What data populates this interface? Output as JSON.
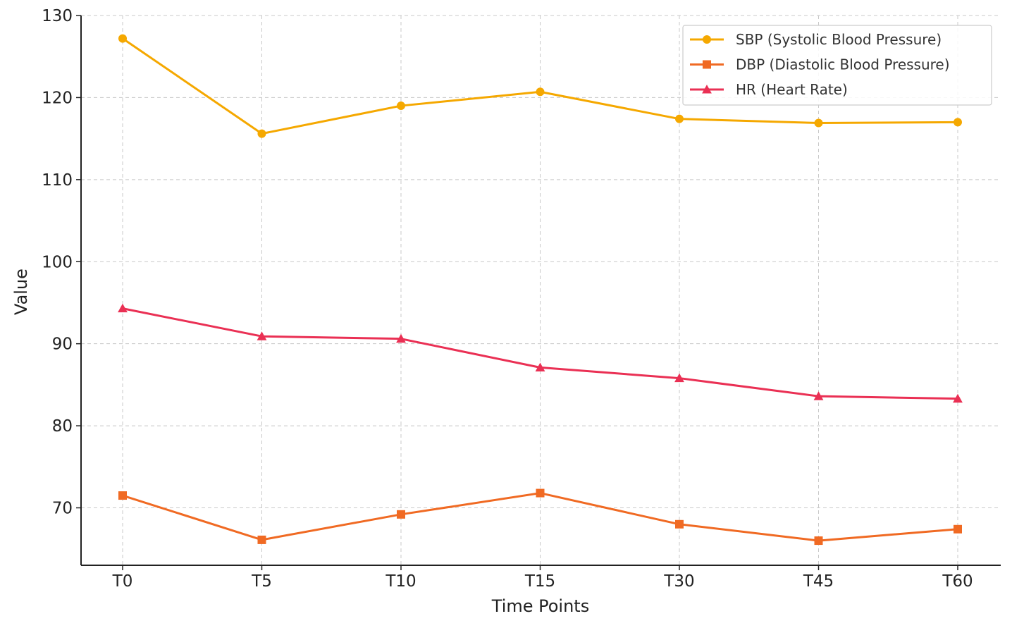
{
  "chart_data": {
    "type": "line",
    "title": "",
    "xlabel": "Time Points",
    "ylabel": "Value",
    "categories": [
      "T0",
      "T5",
      "T10",
      "T15",
      "T30",
      "T45",
      "T60"
    ],
    "ylim": [
      63,
      130
    ],
    "yticks": [
      70,
      80,
      90,
      100,
      110,
      120,
      130
    ],
    "grid": true,
    "legend_position": "top-right",
    "series": [
      {
        "name": "SBP (Systolic Blood Pressure)",
        "color": "#F5A800",
        "marker": "circle",
        "values": [
          127.2,
          115.6,
          119.0,
          120.7,
          117.4,
          116.9,
          117.0
        ]
      },
      {
        "name": "DBP (Diastolic Blood Pressure)",
        "color": "#F06A23",
        "marker": "square",
        "values": [
          71.5,
          66.1,
          69.2,
          71.8,
          68.0,
          66.0,
          67.4
        ]
      },
      {
        "name": "HR (Heart Rate)",
        "color": "#EA3054",
        "marker": "triangle",
        "values": [
          94.3,
          90.9,
          90.6,
          87.1,
          85.8,
          83.6,
          83.3
        ]
      }
    ]
  }
}
